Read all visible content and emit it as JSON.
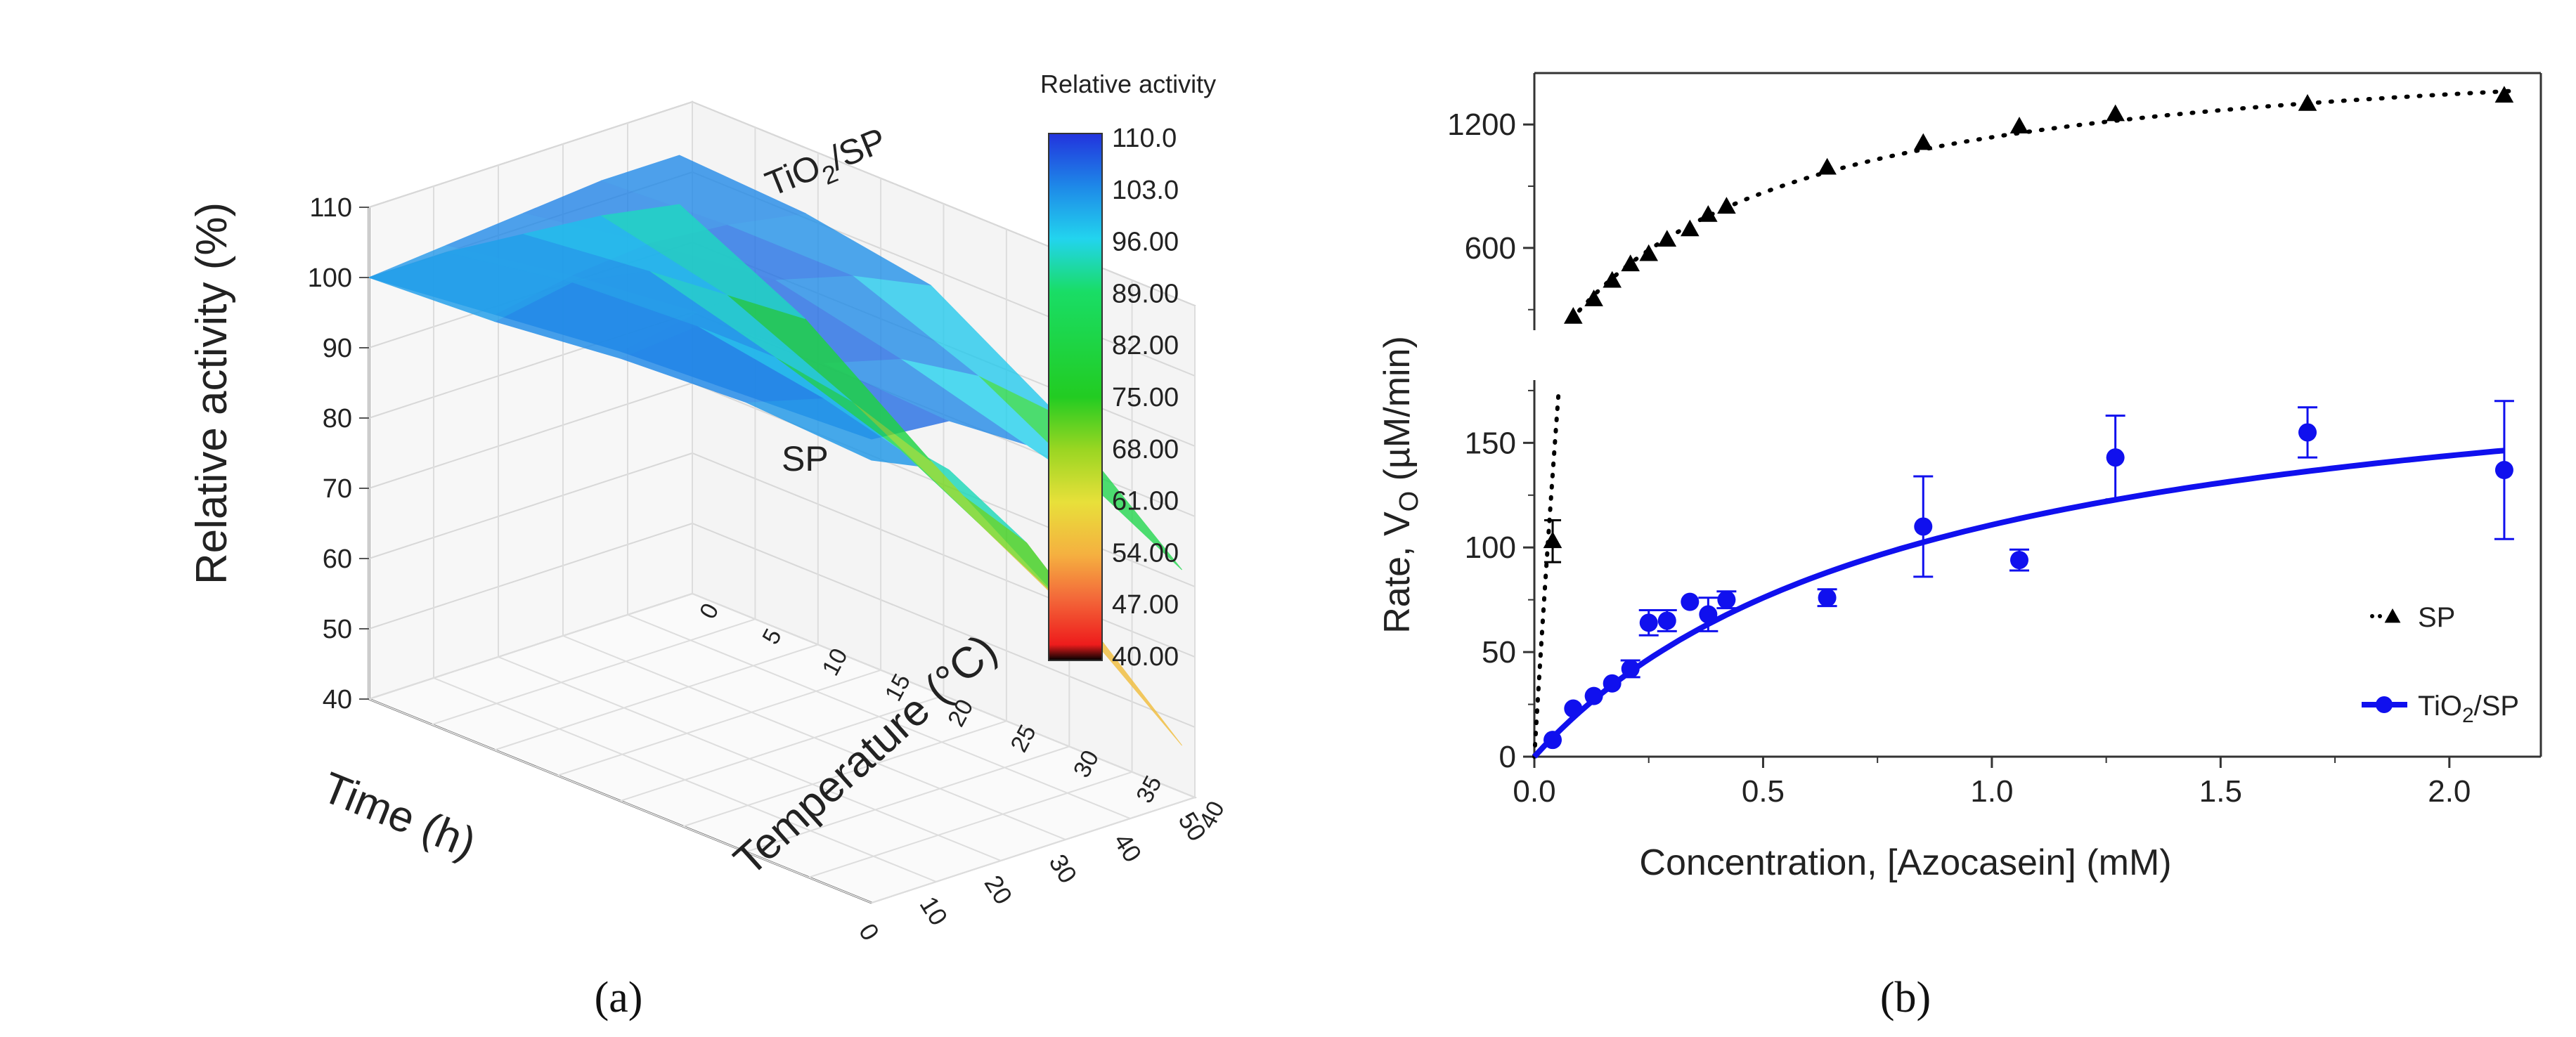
{
  "chart_data": [
    {
      "panel": "a",
      "type": "surface3d",
      "panel_label": "(a)",
      "xlabel": "Time (h)",
      "ylabel": "Temperature (°C)",
      "zlabel": "Relative activity (%)",
      "x_ticks": [
        "0",
        "10",
        "20",
        "30",
        "40",
        "50"
      ],
      "y_ticks": [
        "0",
        "5",
        "10",
        "15",
        "20",
        "25",
        "30",
        "35",
        "40"
      ],
      "z_ticks": [
        "40",
        "50",
        "60",
        "70",
        "80",
        "90",
        "100",
        "110"
      ],
      "xlim": [
        0,
        50
      ],
      "ylim": [
        0,
        40
      ],
      "zlim": [
        40,
        110
      ],
      "colorbar": {
        "title": "Relative activity",
        "ticks": [
          "110.0",
          "103.0",
          "96.00",
          "89.00",
          "82.00",
          "75.00",
          "68.00",
          "61.00",
          "54.00",
          "47.00",
          "40.00"
        ],
        "colors": [
          "#2233dd",
          "#1e88e8",
          "#22d4ee",
          "#19dd66",
          "#22cc22",
          "#9ad622",
          "#e8e03a",
          "#f5b040",
          "#f36a3a",
          "#ee1c1c",
          "#000000"
        ]
      },
      "series": [
        {
          "name": "TiO2/SP",
          "label_main": "TiO",
          "label_sub": "2",
          "label_end": "/SP",
          "temperatures": [
            0,
            10,
            20,
            30,
            40
          ],
          "times": [
            0,
            12,
            24,
            36,
            48
          ],
          "z": [
            [
              100,
              101,
              102,
              103,
              103
            ],
            [
              102,
              104,
              105,
              104,
              102
            ],
            [
              104,
              106,
              107,
              104,
              99
            ],
            [
              105,
              106,
              103,
              97,
              88
            ],
            [
              106,
              105,
              98,
              87,
              73
            ]
          ]
        },
        {
          "name": "SP",
          "label_main": "SP",
          "temperatures": [
            0,
            10,
            20,
            30,
            40
          ],
          "times": [
            0,
            12,
            24,
            36,
            48
          ],
          "z": [
            [
              100,
              100,
              99,
              98,
              96
            ],
            [
              101,
              103,
              101,
              94,
              87
            ],
            [
              103,
              104,
              96,
              86,
              74
            ],
            [
              104,
              101,
              90,
              76,
              62
            ],
            [
              103,
              98,
              84,
              66,
              48
            ]
          ]
        }
      ]
    },
    {
      "panel": "b",
      "type": "scatter",
      "panel_label": "(b)",
      "xlabel": "Concentration, [Azocasein] (mM)",
      "ylabel_main": "Rate, V",
      "ylabel_sub": "O",
      "ylabel_end": " (µM/min)",
      "xlim": [
        0,
        2.2
      ],
      "x_ticks": [
        "0.0",
        "0.5",
        "1.0",
        "1.5",
        "2.0"
      ],
      "lower_axis": {
        "ylim": [
          0,
          180
        ],
        "ticks": [
          "0",
          "50",
          "100",
          "150"
        ]
      },
      "upper_axis": {
        "ylim": [
          200,
          1450
        ],
        "ticks": [
          "600",
          "1200"
        ]
      },
      "legend": {
        "placement": "bottom-right",
        "items": [
          {
            "main": "SP",
            "sub": "",
            "end": ""
          },
          {
            "main": "TiO",
            "sub": "2",
            "end": "/SP"
          }
        ]
      },
      "series": [
        {
          "name": "SP",
          "marker": "triangle",
          "color": "#000000",
          "line": "dotted",
          "fit": {
            "model": "michaelis-menten",
            "Vmax": 1650,
            "Km": 0.45
          },
          "points": [
            {
              "x": 0.04,
              "y": 103,
              "err": 10,
              "axis": "lower"
            },
            {
              "x": 0.085,
              "y": 265,
              "axis": "upper"
            },
            {
              "x": 0.13,
              "y": 350,
              "axis": "upper"
            },
            {
              "x": 0.17,
              "y": 440,
              "axis": "upper"
            },
            {
              "x": 0.21,
              "y": 520,
              "axis": "upper"
            },
            {
              "x": 0.25,
              "y": 570,
              "axis": "upper"
            },
            {
              "x": 0.29,
              "y": 640,
              "axis": "upper"
            },
            {
              "x": 0.34,
              "y": 690,
              "axis": "upper"
            },
            {
              "x": 0.38,
              "y": 760,
              "axis": "upper"
            },
            {
              "x": 0.42,
              "y": 800,
              "axis": "upper"
            },
            {
              "x": 0.64,
              "y": 990,
              "axis": "upper"
            },
            {
              "x": 0.85,
              "y": 1110,
              "axis": "upper"
            },
            {
              "x": 1.06,
              "y": 1190,
              "axis": "upper"
            },
            {
              "x": 1.27,
              "y": 1250,
              "axis": "upper"
            },
            {
              "x": 1.69,
              "y": 1300,
              "axis": "upper"
            },
            {
              "x": 2.12,
              "y": 1340,
              "axis": "upper"
            }
          ]
        },
        {
          "name": "TiO2/SP",
          "marker": "circle",
          "color": "#1010ee",
          "line": "solid",
          "fit": {
            "model": "michaelis-menten",
            "Vmax": 205,
            "Km": 0.85
          },
          "points": [
            {
              "x": 0.04,
              "y": 8,
              "err": 0
            },
            {
              "x": 0.085,
              "y": 23,
              "err": 0
            },
            {
              "x": 0.13,
              "y": 29,
              "err": 0
            },
            {
              "x": 0.17,
              "y": 35,
              "err": 0
            },
            {
              "x": 0.21,
              "y": 42,
              "err": 4
            },
            {
              "x": 0.25,
              "y": 64,
              "err": 6
            },
            {
              "x": 0.29,
              "y": 65,
              "err": 5
            },
            {
              "x": 0.34,
              "y": 74,
              "err": 0
            },
            {
              "x": 0.38,
              "y": 68,
              "err": 8
            },
            {
              "x": 0.42,
              "y": 75,
              "err": 4
            },
            {
              "x": 0.64,
              "y": 76,
              "err": 4
            },
            {
              "x": 0.85,
              "y": 110,
              "err": 24
            },
            {
              "x": 1.06,
              "y": 94,
              "err": 5
            },
            {
              "x": 1.27,
              "y": 143,
              "err": 20
            },
            {
              "x": 1.69,
              "y": 155,
              "err": 12
            },
            {
              "x": 2.12,
              "y": 137,
              "err": 33
            }
          ]
        }
      ]
    }
  ]
}
